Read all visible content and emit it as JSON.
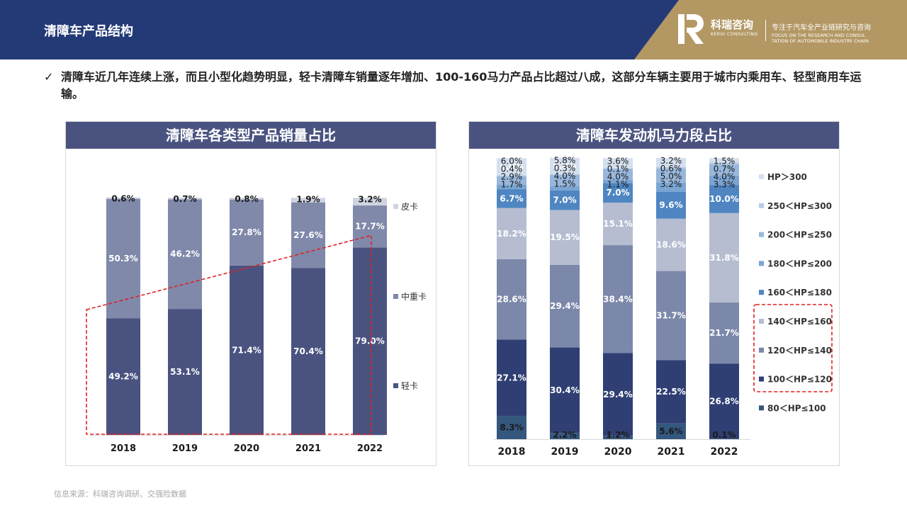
{
  "header": {
    "title": "清障车产品结构",
    "brand_name": "科瑞咨询",
    "brand_en": "KERUI CONSULTING",
    "tagline_cn": "专注于汽车全产业链研究与咨询",
    "tagline_en_1": "FOCUS ON THE RESEARCH AND CONSUL",
    "tagline_en_2": "TATION OF AUTOMOBILE INDUSTRY CHAIN"
  },
  "bullet": {
    "icon": "checkmark-icon",
    "check": "✓",
    "text": "清障车近几年连续上涨，而且小型化趋势明显，轻卡清障车销量逐年增加、100-160马力产品占比超过八成，这部分车辆主要用于城市内乘用车、轻型商用车运输。"
  },
  "source": "信息来源：科瑞咨询调研、交强险数据",
  "colors": {
    "header_bg": "#233a77",
    "header_accent": "#b39864",
    "panel_title_bg": "#4a5380"
  },
  "chart_data": [
    {
      "type": "bar",
      "stacked": true,
      "percent": true,
      "title": "清障车各类型产品销量占比",
      "categories": [
        "2018",
        "2019",
        "2020",
        "2021",
        "2022"
      ],
      "series": [
        {
          "name": "轻卡",
          "values": [
            49.2,
            53.1,
            71.4,
            70.4,
            79.0
          ],
          "labels": [
            "49.2%",
            "53.1%",
            "71.4%",
            "70.4%",
            "79.0%"
          ],
          "color": "#4a5380"
        },
        {
          "name": "中重卡",
          "values": [
            50.3,
            46.2,
            27.8,
            27.6,
            17.7
          ],
          "labels": [
            "50.3%",
            "46.2%",
            "27.8%",
            "27.6%",
            "17.7%"
          ],
          "color": "#8089aa"
        },
        {
          "name": "皮卡",
          "values": [
            0.6,
            0.7,
            0.8,
            1.9,
            3.2
          ],
          "labels": [
            "0.6%",
            "0.7%",
            "0.8%",
            "1.9%",
            "3.2%"
          ],
          "color": "#d0d4e2"
        }
      ],
      "legend": "right",
      "annotation": "red dashed trend triangle over 轻卡 growth"
    },
    {
      "type": "bar",
      "stacked": true,
      "percent": true,
      "title": "清障车发动机马力段占比",
      "categories": [
        "2018",
        "2019",
        "2020",
        "2021",
        "2022"
      ],
      "series": [
        {
          "name": "80＜HP≤100",
          "values": [
            8.3,
            2.2,
            1.2,
            5.6,
            0.1
          ],
          "labels": [
            "8.3%",
            "2.2%",
            "1.2%",
            "5.6%",
            "0.1%"
          ],
          "color": "#34577e"
        },
        {
          "name": "100＜HP≤120",
          "values": [
            27.1,
            30.4,
            29.4,
            22.5,
            26.8
          ],
          "labels": [
            "27.1%",
            "30.4%",
            "29.4%",
            "22.5%",
            "26.8%"
          ],
          "color": "#2f3f73"
        },
        {
          "name": "120＜HP≤140",
          "values": [
            28.6,
            29.4,
            38.4,
            31.7,
            21.7
          ],
          "labels": [
            "28.6%",
            "29.4%",
            "38.4%",
            "31.7%",
            "21.7%"
          ],
          "color": "#7c88aa"
        },
        {
          "name": "140＜HP≤160",
          "values": [
            18.2,
            19.5,
            15.1,
            18.6,
            31.8
          ],
          "labels": [
            "18.2%",
            "19.5%",
            "15.1%",
            "18.6%",
            "31.8%"
          ],
          "color": "#b6bdd1"
        },
        {
          "name": "160＜HP≤180",
          "values": [
            6.7,
            7.0,
            7.0,
            9.6,
            10.0
          ],
          "labels": [
            "6.7%",
            "7.0%",
            "7.0%",
            "9.6%",
            "10.0%"
          ],
          "color": "#4f86c2"
        },
        {
          "name": "180＜HP≤200",
          "values": [
            1.7,
            1.5,
            1.1,
            3.2,
            3.3
          ],
          "labels": [
            "1.7%",
            "1.5%",
            "1.1%",
            "3.2%",
            "3.3%"
          ],
          "color": "#7ba5d2"
        },
        {
          "name": "200＜HP≤250",
          "values": [
            2.9,
            4.0,
            4.0,
            5.0,
            4.0
          ],
          "labels": [
            "2.9%",
            "4.0%",
            "4.0%",
            "5.0%",
            "4.0%"
          ],
          "color": "#98b7dc"
        },
        {
          "name": "250＜HP≤300",
          "values": [
            0.4,
            0.3,
            0.1,
            0.6,
            0.7
          ],
          "labels": [
            "0.4%",
            "0.3%",
            "0.1%",
            "0.6%",
            "0.7%"
          ],
          "color": "#b8cce6"
        },
        {
          "name": "HP＞300",
          "values": [
            6.0,
            5.8,
            3.6,
            3.2,
            1.5
          ],
          "labels": [
            "6.0%",
            "5.8%",
            "3.6%",
            "3.2%",
            "1.5%"
          ],
          "color": "#d4e0ef"
        }
      ],
      "legend": "right",
      "highlight_legend": [
        "100＜HP≤120",
        "120＜HP≤140",
        "140＜HP≤160"
      ]
    }
  ]
}
